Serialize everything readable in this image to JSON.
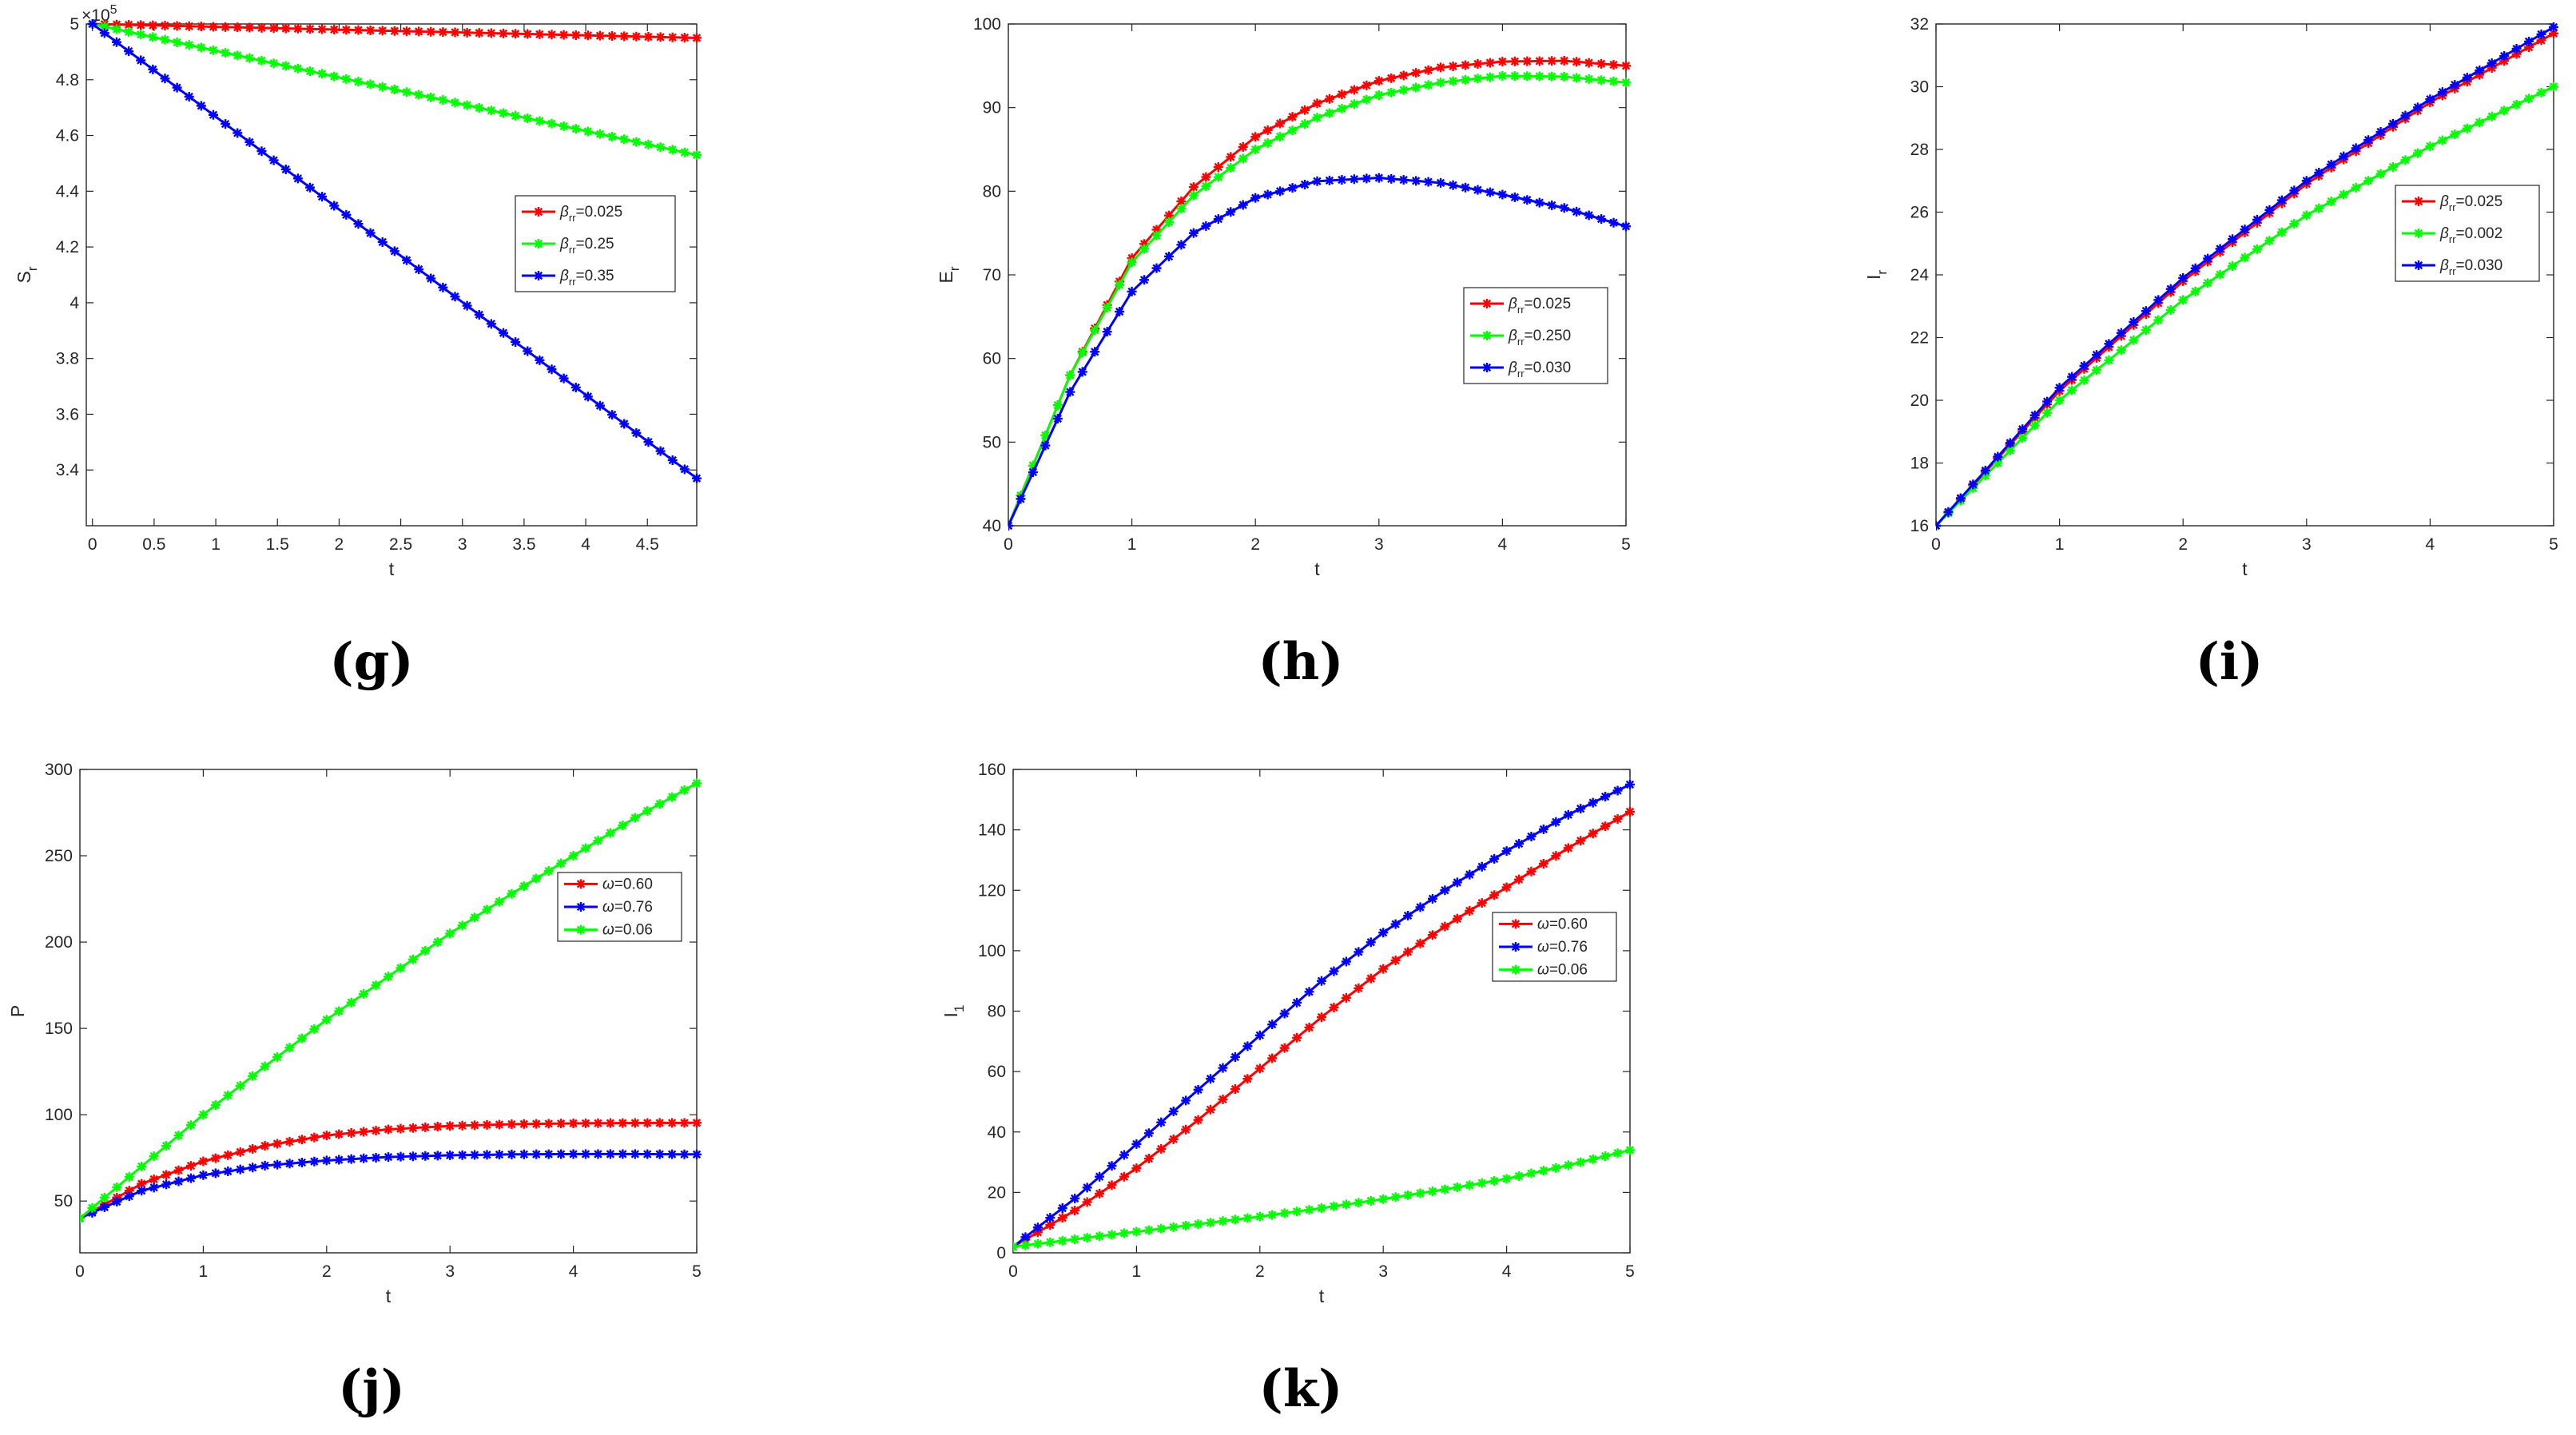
{
  "figure": {
    "panels_note": "five line-chart panels g to k"
  },
  "chart_data": [
    {
      "id": "g",
      "type": "line",
      "caption": "(g)",
      "xlabel": "t",
      "ylabel_main": "S",
      "ylabel_sub": "r",
      "xlim": [
        -0.05,
        4.9
      ],
      "ylim": [
        3.2,
        5.0
      ],
      "xticks": [
        0,
        0.5,
        1,
        1.5,
        2,
        2.5,
        3,
        3.5,
        4,
        4.5
      ],
      "xtick_labels": [
        "0",
        "0.5",
        "1",
        "1.5",
        "2",
        "2.5",
        "3",
        "3.5",
        "4",
        "4.5"
      ],
      "yticks": [
        3.4,
        3.6,
        3.8,
        4.0,
        4.2,
        4.4,
        4.6,
        4.8,
        5.0
      ],
      "ytick_labels": [
        "3.4",
        "3.6",
        "3.8",
        "4",
        "4.2",
        "4.4",
        "4.6",
        "4.8",
        "5"
      ],
      "exponent_base": "×10",
      "exponent_power": "5",
      "legend_position": "right-middle",
      "series": [
        {
          "symbol": "β",
          "sub": "rr",
          "value_text": "=0.025",
          "color": "#ff0000",
          "x": [
            0,
            4.9
          ],
          "y": [
            5.0,
            4.95
          ]
        },
        {
          "symbol": "β",
          "sub": "rr",
          "value_text": "=0.25",
          "color": "#00ff00",
          "x": [
            0,
            4.9
          ],
          "y": [
            5.0,
            4.53
          ]
        },
        {
          "symbol": "β",
          "sub": "rr",
          "value_text": "=0.35",
          "color": "#0000ff",
          "x": [
            0,
            4.9
          ],
          "y": [
            5.0,
            3.37
          ]
        }
      ]
    },
    {
      "id": "h",
      "type": "line",
      "caption": "(h)",
      "xlabel": "t",
      "ylabel_main": "E",
      "ylabel_sub": "r",
      "xlim": [
        0,
        5
      ],
      "ylim": [
        40,
        100
      ],
      "xticks": [
        0,
        1,
        2,
        3,
        4,
        5
      ],
      "xtick_labels": [
        "0",
        "1",
        "2",
        "3",
        "4",
        "5"
      ],
      "yticks": [
        40,
        50,
        60,
        70,
        80,
        90,
        100
      ],
      "ytick_labels": [
        "40",
        "50",
        "60",
        "70",
        "80",
        "90",
        "100"
      ],
      "legend_position": "right-middle",
      "series": [
        {
          "symbol": "β",
          "sub": "rr",
          "value_text": "=0.025",
          "color": "#ff0000",
          "x": [
            0,
            0.5,
            1,
            1.5,
            2,
            2.5,
            3,
            3.5,
            4,
            4.5,
            5
          ],
          "y": [
            40,
            58,
            72,
            80.5,
            86.5,
            90.5,
            93.2,
            94.8,
            95.5,
            95.6,
            95.0
          ]
        },
        {
          "symbol": "β",
          "sub": "rr",
          "value_text": "=0.250",
          "color": "#00ff00",
          "x": [
            0,
            0.5,
            1,
            1.5,
            2,
            2.5,
            3,
            3.5,
            4,
            4.5,
            5
          ],
          "y": [
            40,
            58,
            71.5,
            79.5,
            85,
            88.8,
            91.5,
            93,
            93.8,
            93.7,
            93.0
          ]
        },
        {
          "symbol": "β",
          "sub": "rr",
          "value_text": "=0.030",
          "color": "#0000ff",
          "x": [
            0,
            0.5,
            1,
            1.5,
            2,
            2.5,
            3,
            3.5,
            4,
            4.5,
            5
          ],
          "y": [
            40,
            56,
            68,
            75,
            79.2,
            81.2,
            81.6,
            81,
            79.6,
            78,
            75.8
          ]
        }
      ]
    },
    {
      "id": "i",
      "type": "line",
      "caption": "(i)",
      "xlabel": "t",
      "ylabel_main": "I",
      "ylabel_sub": "r",
      "xlim": [
        0,
        5
      ],
      "ylim": [
        16,
        32
      ],
      "xticks": [
        0,
        1,
        2,
        3,
        4,
        5
      ],
      "xtick_labels": [
        "0",
        "1",
        "2",
        "3",
        "4",
        "5"
      ],
      "yticks": [
        16,
        18,
        20,
        22,
        24,
        26,
        28,
        30,
        32
      ],
      "ytick_labels": [
        "16",
        "18",
        "20",
        "22",
        "24",
        "26",
        "28",
        "30",
        "32"
      ],
      "legend_position": "right-upper",
      "series": [
        {
          "symbol": "β",
          "sub": "rr",
          "value_text": "=0.025",
          "color": "#ff0000",
          "x": [
            0,
            1,
            2,
            3,
            4,
            5
          ],
          "y": [
            16,
            20.3,
            23.8,
            26.9,
            29.5,
            31.7
          ]
        },
        {
          "symbol": "β",
          "sub": "rr",
          "value_text": "=0.002",
          "color": "#00ff00",
          "x": [
            0,
            1,
            2,
            3,
            4,
            5
          ],
          "y": [
            16,
            20.0,
            23.2,
            25.9,
            28.1,
            30.0
          ]
        },
        {
          "symbol": "β",
          "sub": "rr",
          "value_text": "=0.030",
          "color": "#0000ff",
          "x": [
            0,
            1,
            2,
            3,
            4,
            5
          ],
          "y": [
            16,
            20.4,
            23.9,
            27.0,
            29.6,
            31.9
          ]
        }
      ]
    },
    {
      "id": "j",
      "type": "line",
      "caption": "(j)",
      "xlabel": "t",
      "ylabel_main": "P",
      "ylabel_sub": "",
      "xlim": [
        0,
        5
      ],
      "ylim": [
        20,
        300
      ],
      "xticks": [
        0,
        1,
        2,
        3,
        4,
        5
      ],
      "xtick_labels": [
        "0",
        "1",
        "2",
        "3",
        "4",
        "5"
      ],
      "yticks": [
        50,
        100,
        150,
        200,
        250,
        300
      ],
      "ytick_labels": [
        "50",
        "100",
        "150",
        "200",
        "250",
        "300"
      ],
      "legend_position": "right-middle",
      "series": [
        {
          "symbol": "ω",
          "sub": "",
          "value_text": "=0.60",
          "color": "#ff0000",
          "x": [
            0,
            0.5,
            1,
            1.5,
            2,
            2.5,
            3,
            3.5,
            4,
            4.5,
            5
          ],
          "y": [
            40,
            60,
            73,
            82,
            88,
            91.5,
            93.5,
            94.5,
            95,
            95.2,
            95.3
          ]
        },
        {
          "symbol": "ω",
          "sub": "",
          "value_text": "=0.76",
          "color": "#0000ff",
          "x": [
            0,
            0.5,
            1,
            1.5,
            2,
            2.5,
            3,
            3.5,
            4,
            4.5,
            5
          ],
          "y": [
            40,
            56,
            65,
            70.5,
            73.5,
            75.5,
            76.5,
            77,
            77.2,
            77.2,
            77.0
          ]
        },
        {
          "symbol": "ω",
          "sub": "",
          "value_text": "=0.06",
          "color": "#00ff00",
          "x": [
            0,
            0.5,
            1,
            1.5,
            2,
            2.5,
            3,
            3.5,
            4,
            4.5,
            5
          ],
          "y": [
            40,
            70,
            100,
            128,
            155,
            180,
            205,
            228,
            250,
            272,
            292
          ]
        }
      ]
    },
    {
      "id": "k",
      "type": "line",
      "caption": "(k)",
      "xlabel": "t",
      "ylabel_main": "I",
      "ylabel_sub": "1",
      "xlim": [
        0,
        5
      ],
      "ylim": [
        0,
        160
      ],
      "xticks": [
        0,
        1,
        2,
        3,
        4,
        5
      ],
      "xtick_labels": [
        "0",
        "1",
        "2",
        "3",
        "4",
        "5"
      ],
      "yticks": [
        0,
        20,
        40,
        60,
        80,
        100,
        120,
        140,
        160
      ],
      "ytick_labels": [
        "0",
        "20",
        "40",
        "60",
        "80",
        "100",
        "120",
        "140",
        "160"
      ],
      "legend_position": "right-upper",
      "series": [
        {
          "symbol": "ω",
          "sub": "",
          "value_text": "=0.60",
          "color": "#ff0000",
          "x": [
            0,
            0.5,
            1,
            1.5,
            2,
            2.5,
            3,
            3.5,
            4,
            4.5,
            5
          ],
          "y": [
            2,
            14,
            28,
            44,
            61,
            78,
            94,
            108,
            121,
            134,
            146
          ]
        },
        {
          "symbol": "ω",
          "sub": "",
          "value_text": "=0.76",
          "color": "#0000ff",
          "x": [
            0,
            0.5,
            1,
            1.5,
            2,
            2.5,
            3,
            3.5,
            4,
            4.5,
            5
          ],
          "y": [
            2,
            18,
            36,
            54,
            72,
            90,
            106,
            120,
            133,
            145,
            155
          ]
        },
        {
          "symbol": "ω",
          "sub": "",
          "value_text": "=0.06",
          "color": "#00ff00",
          "x": [
            0,
            0.5,
            1,
            1.5,
            2,
            2.5,
            3,
            3.5,
            4,
            4.5,
            5
          ],
          "y": [
            2,
            4.5,
            7,
            9.5,
            12,
            14.8,
            17.8,
            21,
            24.5,
            29,
            34
          ]
        }
      ]
    }
  ]
}
